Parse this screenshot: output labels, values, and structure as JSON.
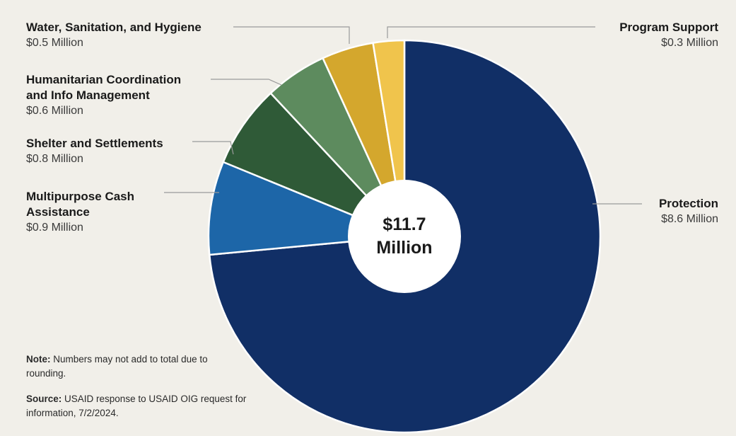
{
  "chart_data": {
    "type": "pie",
    "center_label": "$11.7\nMillion",
    "slices": [
      {
        "name": "Protection",
        "value_label": "$8.6 Million",
        "value": 8.6,
        "color": "#112f66"
      },
      {
        "name": "Multipurpose Cash\nAssistance",
        "value_label": "$0.9 Million",
        "value": 0.9,
        "color": "#1d66a8"
      },
      {
        "name": "Shelter and Settlements",
        "value_label": "$0.8 Million",
        "value": 0.8,
        "color": "#2f5a37"
      },
      {
        "name": "Humanitarian Coordination\nand Info Management",
        "value_label": "$0.6 Million",
        "value": 0.6,
        "color": "#5d8b5e"
      },
      {
        "name": "Water, Sanitation, and Hygiene",
        "value_label": "$0.5 Million",
        "value": 0.5,
        "color": "#d4a72d"
      },
      {
        "name": "Program Support",
        "value_label": "$0.3 Million",
        "value": 0.3,
        "color": "#f0c44c"
      }
    ]
  },
  "notes": {
    "note_label": "Note:",
    "note_text": "Numbers may not add to total due to rounding.",
    "source_label": "Source:",
    "source_text": "USAID response to USAID OIG request for information, 7/2/2024."
  }
}
